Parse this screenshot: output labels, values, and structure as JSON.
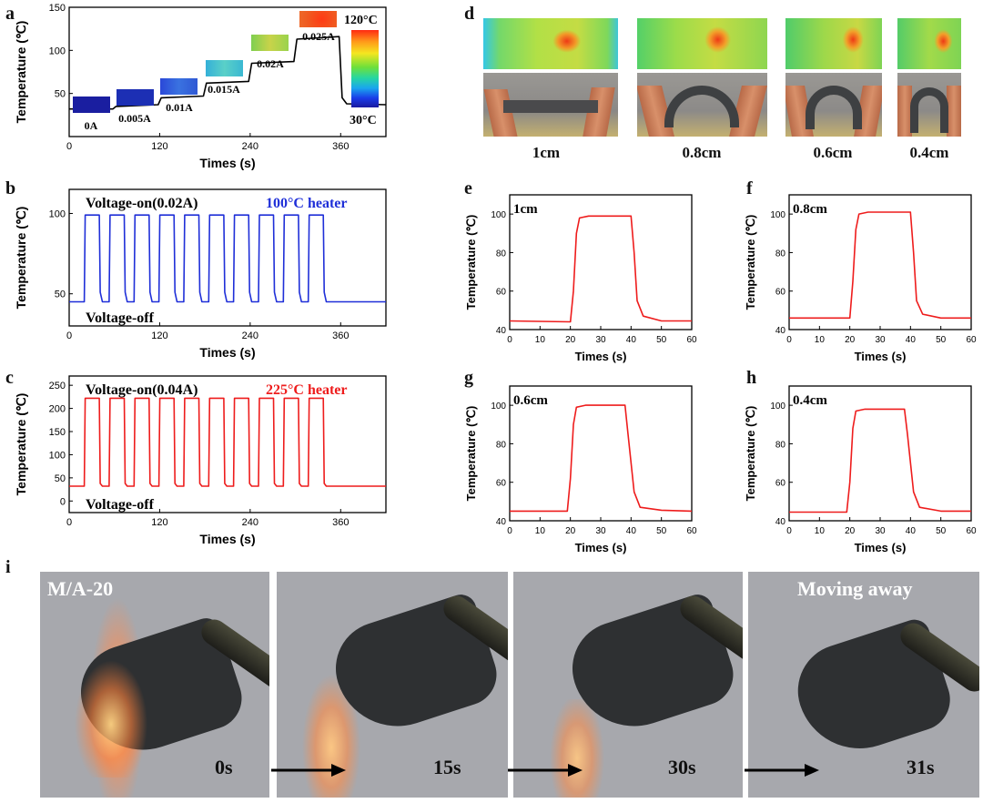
{
  "panels": {
    "a": "a",
    "b": "b",
    "c": "c",
    "d": "d",
    "e": "e",
    "f": "f",
    "g": "g",
    "h": "h",
    "i": "i"
  },
  "colors": {
    "blue_line": "#1f2fd8",
    "red_line": "#ee1c1c",
    "axis": "#000000"
  },
  "chart_data": [
    {
      "id": "a",
      "type": "line",
      "xlabel": "Times (s)",
      "ylabel": "Temperature (℃)",
      "xlim": [
        0,
        420
      ],
      "ylim": [
        0,
        150
      ],
      "xticks": [
        0,
        120,
        240,
        360
      ],
      "yticks": [
        50,
        100,
        150
      ],
      "series": [
        {
          "name": "temperature",
          "color": "#000000",
          "points": [
            [
              0,
              32
            ],
            [
              58,
              32
            ],
            [
              62,
              35
            ],
            [
              118,
              37
            ],
            [
              122,
              45
            ],
            [
              178,
              47
            ],
            [
              182,
              62
            ],
            [
              238,
              64
            ],
            [
              242,
              85
            ],
            [
              298,
              87
            ],
            [
              302,
              113
            ],
            [
              358,
              116
            ],
            [
              362,
              45
            ],
            [
              368,
              38
            ],
            [
              420,
              37
            ]
          ]
        }
      ],
      "current_labels": [
        "0A",
        "0.005A",
        "0.01A",
        "0.015A",
        "0.02A",
        "0.025A"
      ],
      "colorbar": {
        "max_label": "120°C",
        "min_label": "30°C"
      }
    },
    {
      "id": "b",
      "type": "line",
      "xlabel": "Times (s)",
      "ylabel": "Temperature (℃)",
      "xlim": [
        0,
        420
      ],
      "ylim": [
        30,
        115
      ],
      "xticks": [
        0,
        120,
        240,
        360
      ],
      "yticks": [
        50,
        100
      ],
      "annotations": {
        "on": "Voltage-on(0.02A)",
        "off": "Voltage-off",
        "heater": "100°C heater"
      },
      "series": [
        {
          "name": "temperature",
          "color": "#1f2fd8",
          "low": 45,
          "high": 99,
          "cycles": [
            [
              20,
              40
            ],
            [
              53,
              73
            ],
            [
              86,
              106
            ],
            [
              119,
              139
            ],
            [
              152,
              172
            ],
            [
              185,
              205
            ],
            [
              218,
              238
            ],
            [
              251,
              271
            ],
            [
              284,
              304
            ],
            [
              317,
              337
            ]
          ],
          "x_end": 420
        }
      ]
    },
    {
      "id": "c",
      "type": "line",
      "xlabel": "Times (s)",
      "ylabel": "Temperature (℃)",
      "xlim": [
        0,
        420
      ],
      "ylim": [
        -25,
        270
      ],
      "xticks": [
        0,
        120,
        240,
        360
      ],
      "yticks": [
        0,
        50,
        100,
        150,
        200,
        250
      ],
      "annotations": {
        "on": "Voltage-on(0.04A)",
        "off": "Voltage-off",
        "heater": "225°C heater"
      },
      "series": [
        {
          "name": "temperature",
          "color": "#ee1c1c",
          "low": 32,
          "high": 222,
          "cycles": [
            [
              20,
              40
            ],
            [
              53,
              73
            ],
            [
              86,
              106
            ],
            [
              119,
              139
            ],
            [
              152,
              172
            ],
            [
              185,
              205
            ],
            [
              218,
              238
            ],
            [
              251,
              271
            ],
            [
              284,
              304
            ],
            [
              317,
              337
            ]
          ],
          "x_end": 420
        }
      ]
    },
    {
      "id": "e",
      "type": "line",
      "label": "1cm",
      "xlabel": "Times (s)",
      "ylabel": "Temperature (℃)",
      "xlim": [
        0,
        60
      ],
      "ylim": [
        40,
        110
      ],
      "xticks": [
        0,
        10,
        20,
        30,
        40,
        50,
        60
      ],
      "yticks": [
        40,
        60,
        80,
        100
      ],
      "series": [
        {
          "name": "temperature",
          "color": "#ee1c1c",
          "points": [
            [
              0,
              44.5
            ],
            [
              20,
              44
            ],
            [
              21,
              60
            ],
            [
              22,
              90
            ],
            [
              23,
              98
            ],
            [
              26,
              99
            ],
            [
              40,
              99
            ],
            [
              41,
              80
            ],
            [
              42,
              55
            ],
            [
              44,
              47
            ],
            [
              50,
              44.5
            ],
            [
              60,
              44.5
            ]
          ]
        }
      ]
    },
    {
      "id": "f",
      "type": "line",
      "label": "0.8cm",
      "xlabel": "Times (s)",
      "ylabel": "Temperature (℃)",
      "xlim": [
        0,
        60
      ],
      "ylim": [
        40,
        110
      ],
      "xticks": [
        0,
        10,
        20,
        30,
        40,
        50,
        60
      ],
      "yticks": [
        40,
        60,
        80,
        100
      ],
      "series": [
        {
          "name": "temperature",
          "color": "#ee1c1c",
          "points": [
            [
              0,
              46
            ],
            [
              20,
              46
            ],
            [
              21,
              65
            ],
            [
              22,
              92
            ],
            [
              23,
              100
            ],
            [
              26,
              101
            ],
            [
              40,
              101
            ],
            [
              41,
              80
            ],
            [
              42,
              55
            ],
            [
              44,
              48
            ],
            [
              50,
              46
            ],
            [
              60,
              46
            ]
          ]
        }
      ]
    },
    {
      "id": "g",
      "type": "line",
      "label": "0.6cm",
      "xlabel": "Times (s)",
      "ylabel": "Temperature (℃)",
      "xlim": [
        0,
        60
      ],
      "ylim": [
        40,
        110
      ],
      "xticks": [
        0,
        10,
        20,
        30,
        40,
        50,
        60
      ],
      "yticks": [
        40,
        60,
        80,
        100
      ],
      "series": [
        {
          "name": "temperature",
          "color": "#ee1c1c",
          "points": [
            [
              0,
              45
            ],
            [
              19,
              45
            ],
            [
              20,
              62
            ],
            [
              21,
              90
            ],
            [
              22,
              99
            ],
            [
              25,
              100
            ],
            [
              38,
              100
            ],
            [
              39,
              85
            ],
            [
              41,
              55
            ],
            [
              43,
              47
            ],
            [
              50,
              45.5
            ],
            [
              60,
              45
            ]
          ]
        }
      ]
    },
    {
      "id": "h",
      "type": "line",
      "label": "0.4cm",
      "xlabel": "Times (s)",
      "ylabel": "Temperature (℃)",
      "xlim": [
        0,
        60
      ],
      "ylim": [
        40,
        110
      ],
      "xticks": [
        0,
        10,
        20,
        30,
        40,
        50,
        60
      ],
      "yticks": [
        40,
        60,
        80,
        100
      ],
      "series": [
        {
          "name": "temperature",
          "color": "#ee1c1c",
          "points": [
            [
              0,
              44.5
            ],
            [
              19,
              44.5
            ],
            [
              20,
              60
            ],
            [
              21,
              88
            ],
            [
              22,
              97
            ],
            [
              25,
              98
            ],
            [
              38,
              98
            ],
            [
              39,
              85
            ],
            [
              41,
              55
            ],
            [
              43,
              47
            ],
            [
              50,
              45
            ],
            [
              60,
              45
            ]
          ]
        }
      ]
    }
  ],
  "d_labels": [
    "1cm",
    "0.8cm",
    "0.6cm",
    "0.4cm"
  ],
  "i_frames": {
    "title": "M/A-20",
    "last_title": "Moving away",
    "times": [
      "0s",
      "15s",
      "30s",
      "31s"
    ]
  }
}
